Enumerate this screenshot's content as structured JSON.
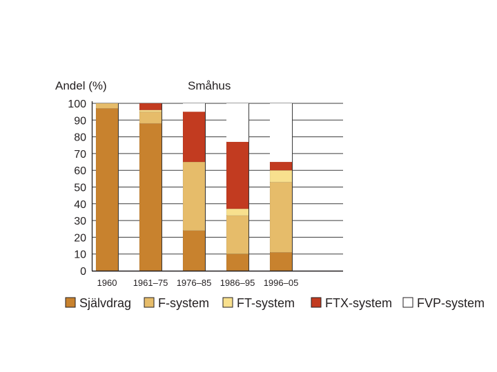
{
  "chart_data": {
    "type": "bar",
    "stacked": true,
    "title": "Småhus",
    "ylabel": "Andel (%)",
    "xlabel": "",
    "ylim": [
      0,
      100
    ],
    "yticks": [
      0,
      10,
      20,
      30,
      40,
      50,
      60,
      70,
      80,
      90,
      100
    ],
    "grid": true,
    "legend_position": "bottom",
    "categories": [
      "1960",
      "1961–75",
      "1976–85",
      "1986–95",
      "1996–05"
    ],
    "series": [
      {
        "name": "Självdrag",
        "color": "#c8822e",
        "values": [
          97,
          88,
          24,
          10,
          11
        ]
      },
      {
        "name": "F-system",
        "color": "#e6bc6a",
        "values": [
          3,
          7,
          41,
          23,
          42
        ]
      },
      {
        "name": "FT-system",
        "color": "#f8e08e",
        "values": [
          0,
          1,
          0,
          4,
          7
        ]
      },
      {
        "name": "FTX-system",
        "color": "#c23b20",
        "values": [
          0,
          4,
          30,
          40,
          5
        ]
      },
      {
        "name": "FVP-system",
        "color": "#ffffff",
        "values": [
          0,
          0,
          5,
          23,
          35
        ]
      }
    ]
  }
}
